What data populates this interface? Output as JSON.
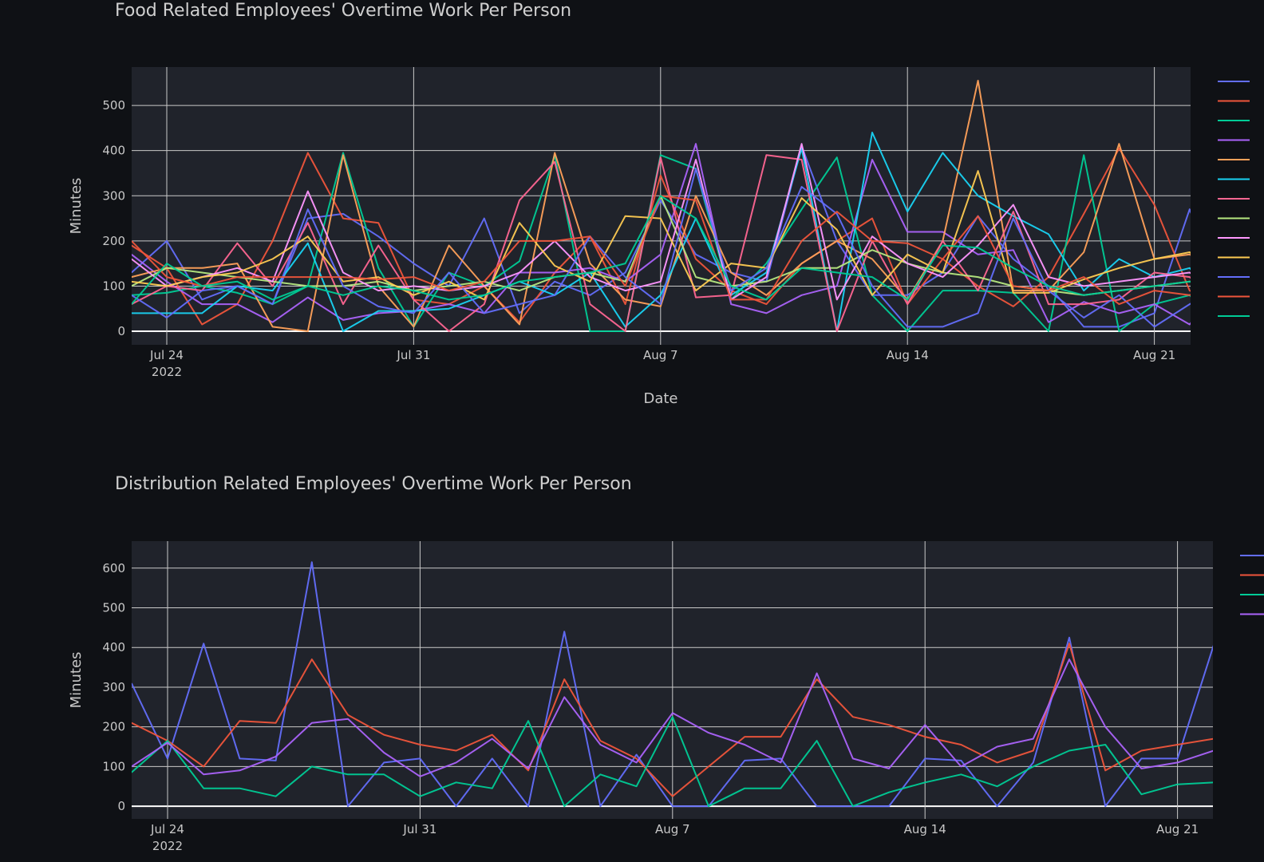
{
  "chart_data": [
    {
      "type": "line",
      "title": "Food Related Employees' Overtime Work Per Person",
      "xlabel": "Date",
      "ylabel": "Minutes",
      "x_start": "2022-07-23",
      "ylim": [
        -30,
        585
      ],
      "y_ticks": [
        0,
        100,
        200,
        300,
        400,
        500
      ],
      "x_ticks": [
        {
          "date": "2022-07-24",
          "label": "Jul 24",
          "sub": "2022"
        },
        {
          "date": "2022-07-31",
          "label": "Jul 31",
          "sub": ""
        },
        {
          "date": "2022-08-07",
          "label": "Aug 7",
          "sub": ""
        },
        {
          "date": "2022-08-14",
          "label": "Aug 14",
          "sub": ""
        },
        {
          "date": "2022-08-21",
          "label": "Aug 21",
          "sub": ""
        }
      ],
      "grid": true,
      "legend": "right (entries cropped)",
      "series": [
        {
          "color": "#636efa",
          "values": [
            130,
            200,
            70,
            100,
            60,
            250,
            260,
            210,
            150,
            100,
            250,
            40,
            110,
            80,
            130,
            290,
            170,
            130,
            110,
            410,
            200,
            80,
            80,
            130,
            255,
            160,
            100,
            10,
            10,
            40,
            270,
            70,
            30,
            80,
            10
          ]
        },
        {
          "color": "#ef553b",
          "values": [
            190,
            140,
            15,
            60,
            200,
            395,
            250,
            240,
            70,
            60,
            100,
            20,
            130,
            210,
            60,
            345,
            160,
            90,
            60,
            150,
            200,
            250,
            60,
            160,
            100,
            55,
            120,
            260,
            405,
            280,
            90,
            60,
            60,
            130,
            140
          ]
        },
        {
          "color": "#00cc96",
          "values": [
            80,
            85,
            100,
            85,
            60,
            100,
            395,
            140,
            10,
            130,
            100,
            155,
            390,
            0,
            0,
            390,
            360,
            70,
            150,
            270,
            385,
            80,
            0,
            90,
            90,
            85,
            0,
            390,
            0,
            60,
            80,
            0,
            80,
            20,
            75
          ]
        },
        {
          "color": "#ab63fa",
          "values": [
            170,
            110,
            60,
            60,
            20,
            75,
            25,
            40,
            45,
            60,
            40,
            130,
            130,
            140,
            110,
            170,
            415,
            60,
            40,
            80,
            100,
            380,
            220,
            220,
            170,
            180,
            20,
            65,
            40,
            60,
            15,
            110,
            90,
            120,
            130
          ]
        },
        {
          "color": "#ffa15a",
          "values": [
            120,
            140,
            140,
            150,
            10,
            0,
            390,
            100,
            10,
            190,
            100,
            15,
            395,
            150,
            70,
            55,
            300,
            130,
            80,
            150,
            200,
            160,
            70,
            200,
            555,
            90,
            90,
            175,
            415,
            160,
            170,
            130,
            60,
            140,
            120
          ]
        },
        {
          "color": "#19d3f3",
          "values": [
            40,
            40,
            40,
            100,
            90,
            195,
            0,
            45,
            45,
            50,
            80,
            110,
            80,
            130,
            10,
            80,
            250,
            80,
            130,
            405,
            0,
            440,
            265,
            395,
            300,
            255,
            215,
            90,
            160,
            120,
            140,
            60,
            80,
            110,
            125
          ]
        },
        {
          "color": "#ff6692",
          "values": [
            60,
            100,
            90,
            195,
            100,
            240,
            60,
            190,
            70,
            0,
            60,
            290,
            375,
            60,
            0,
            385,
            75,
            80,
            390,
            380,
            0,
            200,
            60,
            200,
            90,
            265,
            60,
            60,
            70,
            130,
            120,
            60,
            90,
            120,
            160
          ]
        },
        {
          "color": "#b6e880",
          "values": [
            100,
            140,
            130,
            120,
            110,
            100,
            100,
            110,
            90,
            100,
            110,
            90,
            120,
            130,
            110,
            300,
            120,
            100,
            110,
            140,
            140,
            180,
            150,
            130,
            120,
            100,
            90,
            80,
            90,
            100,
            110,
            120,
            130,
            140,
            150
          ]
        },
        {
          "color": "#ff97ff",
          "values": [
            160,
            100,
            120,
            140,
            110,
            310,
            130,
            90,
            100,
            90,
            100,
            130,
            200,
            120,
            90,
            110,
            380,
            70,
            120,
            415,
            70,
            210,
            150,
            120,
            190,
            280,
            120,
            100,
            110,
            120,
            130,
            90,
            90,
            130,
            150
          ]
        },
        {
          "color": "#fecb52",
          "values": [
            110,
            100,
            120,
            130,
            160,
            210,
            110,
            120,
            80,
            110,
            70,
            240,
            145,
            110,
            255,
            250,
            90,
            150,
            140,
            295,
            225,
            80,
            170,
            130,
            355,
            85,
            85,
            115,
            140,
            160,
            175,
            120,
            90,
            130,
            170
          ]
        },
        {
          "color": "#636efa",
          "values": [
            80,
            30,
            90,
            100,
            60,
            270,
            100,
            55,
            40,
            130,
            40,
            60,
            80,
            210,
            120,
            60,
            360,
            90,
            140,
            320,
            260,
            100,
            10,
            10,
            40,
            250,
            90,
            30,
            80,
            10,
            60,
            100,
            120,
            130,
            110
          ]
        },
        {
          "color": "#ef553b",
          "values": [
            200,
            120,
            100,
            120,
            120,
            120,
            120,
            115,
            120,
            90,
            110,
            200,
            200,
            210,
            100,
            300,
            290,
            70,
            70,
            200,
            265,
            200,
            195,
            160,
            255,
            100,
            90,
            120,
            60,
            90,
            80,
            110,
            120,
            130,
            140
          ]
        },
        {
          "color": "#00cc96",
          "values": [
            60,
            150,
            100,
            110,
            70,
            100,
            80,
            100,
            90,
            70,
            80,
            110,
            120,
            130,
            150,
            300,
            250,
            100,
            70,
            140,
            130,
            120,
            70,
            190,
            185,
            140,
            100,
            80,
            90,
            100,
            110,
            90,
            100,
            70,
            90
          ]
        }
      ]
    },
    {
      "type": "line",
      "title": "Distribution Related Employees' Overtime Work Per Person",
      "xlabel": "",
      "ylabel": "Minutes",
      "x_start": "2022-07-23",
      "ylim": [
        -32,
        668
      ],
      "y_ticks": [
        0,
        100,
        200,
        300,
        400,
        500,
        600
      ],
      "x_ticks": [
        {
          "date": "2022-07-24",
          "label": "Jul 24",
          "sub": "2022"
        },
        {
          "date": "2022-07-31",
          "label": "Jul 31",
          "sub": ""
        },
        {
          "date": "2022-08-07",
          "label": "Aug 7",
          "sub": ""
        },
        {
          "date": "2022-08-14",
          "label": "Aug 14",
          "sub": ""
        },
        {
          "date": "2022-08-21",
          "label": "Aug 21",
          "sub": ""
        }
      ],
      "grid": true,
      "legend": "right (entries cropped)",
      "series": [
        {
          "color": "#636efa",
          "values": [
            310,
            120,
            410,
            120,
            115,
            615,
            0,
            110,
            120,
            0,
            120,
            0,
            440,
            0,
            130,
            0,
            0,
            115,
            120,
            0,
            0,
            0,
            120,
            115,
            0,
            110,
            425,
            0,
            120,
            120,
            405
          ]
        },
        {
          "color": "#ef553b",
          "values": [
            210,
            165,
            100,
            215,
            210,
            370,
            230,
            180,
            155,
            140,
            180,
            90,
            320,
            165,
            120,
            25,
            100,
            175,
            175,
            320,
            225,
            205,
            175,
            155,
            110,
            140,
            410,
            90,
            140,
            155,
            170
          ]
        },
        {
          "color": "#00cc96",
          "values": [
            85,
            165,
            45,
            45,
            25,
            100,
            80,
            80,
            25,
            60,
            45,
            215,
            0,
            80,
            50,
            225,
            0,
            45,
            45,
            165,
            0,
            35,
            60,
            80,
            50,
            100,
            140,
            155,
            30,
            55,
            60
          ]
        },
        {
          "color": "#ab63fa",
          "values": [
            100,
            160,
            80,
            90,
            125,
            210,
            220,
            135,
            75,
            110,
            170,
            95,
            275,
            155,
            110,
            235,
            185,
            155,
            110,
            335,
            120,
            95,
            205,
            100,
            150,
            170,
            370,
            200,
            95,
            110,
            140
          ]
        }
      ]
    }
  ]
}
